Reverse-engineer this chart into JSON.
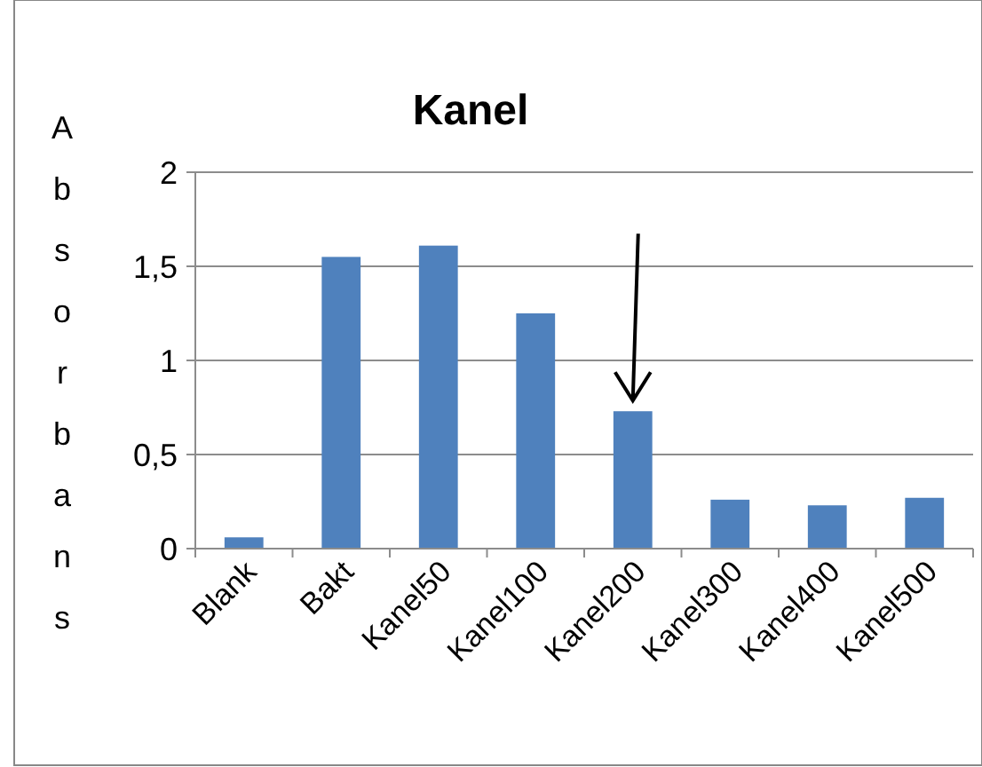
{
  "chart_data": {
    "type": "bar",
    "title": "Kanel",
    "ylabel": "Absorbans",
    "categories": [
      "Blank",
      "Bakt",
      "Kanel50",
      "Kanel100",
      "Kanel200",
      "Kanel300",
      "Kanel400",
      "Kanel500"
    ],
    "values": [
      0.06,
      1.55,
      1.61,
      1.25,
      0.73,
      0.26,
      0.23,
      0.27
    ],
    "color": "#4f81bd",
    "ylim": [
      0,
      2
    ],
    "yticks": [
      {
        "value": 0,
        "label": "0"
      },
      {
        "value": 0.5,
        "label": "0,5"
      },
      {
        "value": 1,
        "label": "1"
      },
      {
        "value": 1.5,
        "label": "1,5"
      },
      {
        "value": 2,
        "label": "2"
      }
    ],
    "grid": "y"
  }
}
